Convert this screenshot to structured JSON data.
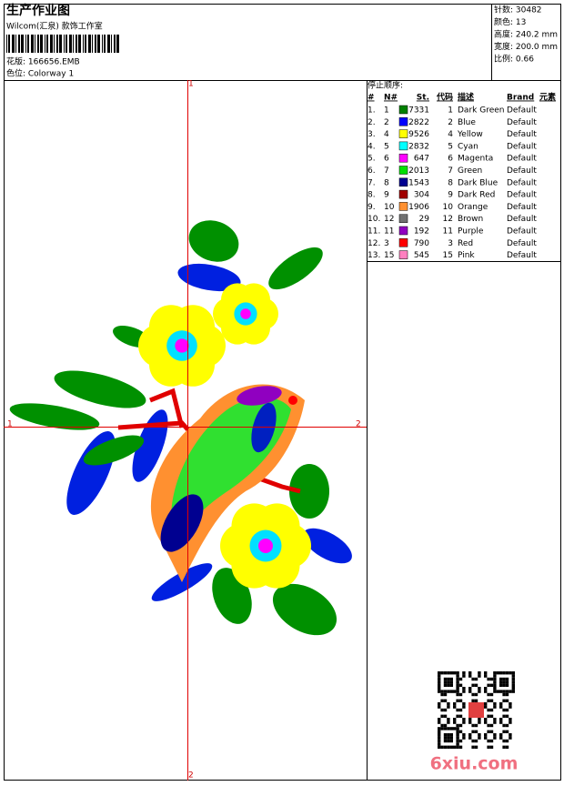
{
  "header": {
    "title": "生产作业图",
    "studio": "Wilcom(汇泉) 款饰工作室",
    "design": "花版: 166656.EMB",
    "colorway": "色位: Colorway 1",
    "stats": [
      "针数: 30482",
      "颜色: 13",
      "高度: 240.2 mm",
      "宽度: 200.0 mm",
      "比例: 0.66"
    ]
  },
  "axis_labels": {
    "top": "1",
    "bottom": "2",
    "left": "1",
    "right": "2"
  },
  "table": {
    "caption": "停止顺序:",
    "columns": [
      "#",
      "N#",
      "St.",
      "代码",
      "描述",
      "Brand",
      "元素"
    ],
    "rows": [
      {
        "no": "1.",
        "n": "1",
        "color": "#008000",
        "st": "7331",
        "code": "1",
        "desc": "Dark Green",
        "brand": "Default"
      },
      {
        "no": "2.",
        "n": "2",
        "color": "#0000ff",
        "st": "2822",
        "code": "2",
        "desc": "Blue",
        "brand": "Default"
      },
      {
        "no": "3.",
        "n": "4",
        "color": "#ffff00",
        "st": "9526",
        "code": "4",
        "desc": "Yellow",
        "brand": "Default"
      },
      {
        "no": "4.",
        "n": "5",
        "color": "#00ffff",
        "st": "2832",
        "code": "5",
        "desc": "Cyan",
        "brand": "Default"
      },
      {
        "no": "5.",
        "n": "6",
        "color": "#ff00ff",
        "st": "647",
        "code": "6",
        "desc": "Magenta",
        "brand": "Default"
      },
      {
        "no": "6.",
        "n": "7",
        "color": "#00e000",
        "st": "2013",
        "code": "7",
        "desc": "Green",
        "brand": "Default"
      },
      {
        "no": "7.",
        "n": "8",
        "color": "#000090",
        "st": "1543",
        "code": "8",
        "desc": "Dark Blue",
        "brand": "Default"
      },
      {
        "no": "8.",
        "n": "9",
        "color": "#a00000",
        "st": "304",
        "code": "9",
        "desc": "Dark Red",
        "brand": "Default"
      },
      {
        "no": "9.",
        "n": "10",
        "color": "#ff9030",
        "st": "1906",
        "code": "10",
        "desc": "Orange",
        "brand": "Default"
      },
      {
        "no": "10.",
        "n": "12",
        "color": "#707070",
        "st": "29",
        "code": "12",
        "desc": "Brown",
        "brand": "Default"
      },
      {
        "no": "11.",
        "n": "11",
        "color": "#9000c0",
        "st": "192",
        "code": "11",
        "desc": "Purple",
        "brand": "Default"
      },
      {
        "no": "12.",
        "n": "3",
        "color": "#ff0000",
        "st": "790",
        "code": "3",
        "desc": "Red",
        "brand": "Default"
      },
      {
        "no": "13.",
        "n": "15",
        "color": "#ff80c0",
        "st": "545",
        "code": "15",
        "desc": "Pink",
        "brand": "Default"
      }
    ]
  },
  "watermark": "6xiu.com"
}
